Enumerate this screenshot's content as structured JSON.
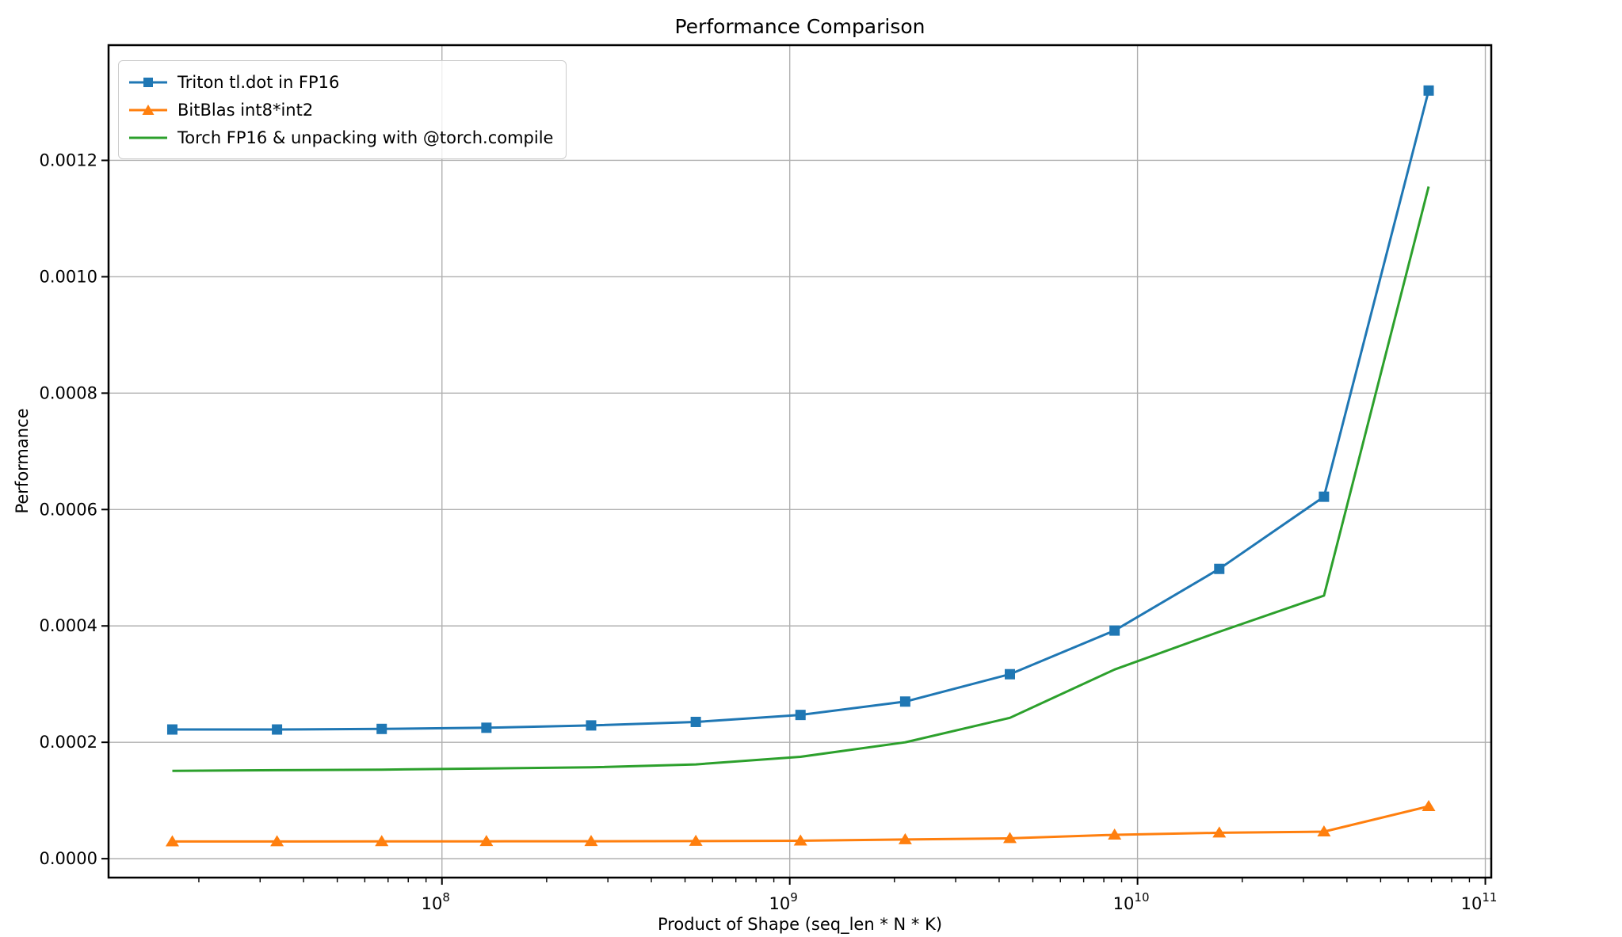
{
  "title": "Performance Comparison",
  "xlabel": "Product of Shape (seq_len * N * K)",
  "ylabel": "Performance",
  "colors": {
    "grid": "#b0b0b0",
    "spine": "#000000",
    "background": "#ffffff",
    "series_blue": "#1f77b4",
    "series_orange": "#ff7f0e",
    "series_green": "#2ca02c"
  },
  "chart_data": {
    "type": "line",
    "x_scale": "log",
    "grid": true,
    "legend_position": "upper left",
    "xlim": [
      11000000,
      104000000000
    ],
    "ylim": [
      -3.25e-05,
      0.001398
    ],
    "x": [
      16777216,
      33554432,
      67108864,
      134217728,
      268435456,
      536870912,
      1073741824,
      2147483648,
      4294967296,
      8589934592,
      17179869184,
      34359738368,
      68719476736
    ],
    "series": [
      {
        "name": "Triton tl.dot in FP16",
        "color": "#1f77b4",
        "marker": "square",
        "values": [
          0.000222,
          0.000222,
          0.000223,
          0.000225,
          0.000229,
          0.000235,
          0.000247,
          0.00027,
          0.000317,
          0.000392,
          0.000498,
          0.000622,
          0.00132
        ]
      },
      {
        "name": "BitBlas int8*int2",
        "color": "#ff7f0e",
        "marker": "triangle-up",
        "values": [
          2.95e-05,
          2.96e-05,
          2.97e-05,
          2.99e-05,
          3e-05,
          3.02e-05,
          3.08e-05,
          3.3e-05,
          3.5e-05,
          4.1e-05,
          4.45e-05,
          4.65e-05,
          9e-05
        ]
      },
      {
        "name": "Torch FP16 & unpacking with @torch.compile",
        "color": "#2ca02c",
        "marker": "none",
        "values": [
          0.000151,
          0.000152,
          0.000153,
          0.000155,
          0.000157,
          0.000162,
          0.000175,
          0.0002,
          0.000242,
          0.000325,
          0.00039,
          0.000452,
          0.001155
        ]
      }
    ],
    "x_ticks": [
      {
        "base": "10",
        "exp": "8",
        "value": 100000000
      },
      {
        "base": "10",
        "exp": "9",
        "value": 1000000000
      },
      {
        "base": "10",
        "exp": "10",
        "value": 10000000000
      },
      {
        "base": "10",
        "exp": "11",
        "value": 100000000000
      }
    ],
    "y_ticks": [
      {
        "label": "0.0000",
        "value": 0.0
      },
      {
        "label": "0.0002",
        "value": 0.0002
      },
      {
        "label": "0.0004",
        "value": 0.0004
      },
      {
        "label": "0.0006",
        "value": 0.0006
      },
      {
        "label": "0.0008",
        "value": 0.0008
      },
      {
        "label": "0.0010",
        "value": 0.001
      },
      {
        "label": "0.0012",
        "value": 0.0012
      }
    ]
  }
}
